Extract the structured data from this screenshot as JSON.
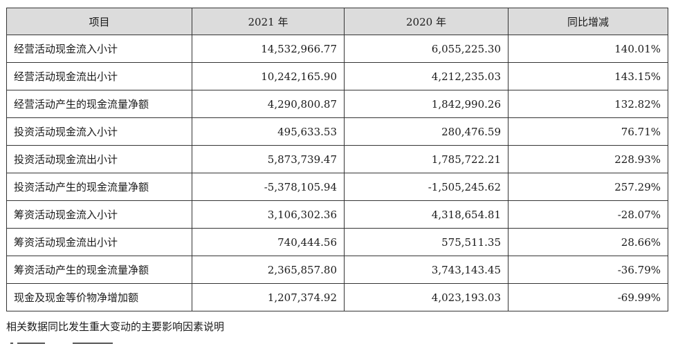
{
  "table": {
    "headers": [
      "项目",
      "2021 年",
      "2020 年",
      "同比增减"
    ],
    "rows": [
      {
        "item": "经营活动现金流入小计",
        "y2021": "14,532,966.77",
        "y2020": "6,055,225.30",
        "change": "140.01%"
      },
      {
        "item": "经营活动现金流出小计",
        "y2021": "10,242,165.90",
        "y2020": "4,212,235.03",
        "change": "143.15%"
      },
      {
        "item": "经营活动产生的现金流量净额",
        "y2021": "4,290,800.87",
        "y2020": "1,842,990.26",
        "change": "132.82%"
      },
      {
        "item": "投资活动现金流入小计",
        "y2021": "495,633.53",
        "y2020": "280,476.59",
        "change": "76.71%"
      },
      {
        "item": "投资活动现金流出小计",
        "y2021": "5,873,739.47",
        "y2020": "1,785,722.21",
        "change": "228.93%"
      },
      {
        "item": "投资活动产生的现金流量净额",
        "y2021": "-5,378,105.94",
        "y2020": "-1,505,245.62",
        "change": "257.29%"
      },
      {
        "item": "筹资活动现金流入小计",
        "y2021": "3,106,302.36",
        "y2020": "4,318,654.81",
        "change": "-28.07%"
      },
      {
        "item": "筹资活动现金流出小计",
        "y2021": "740,444.56",
        "y2020": "575,511.35",
        "change": "28.66%"
      },
      {
        "item": "筹资活动产生的现金流量净额",
        "y2021": "2,365,857.80",
        "y2020": "3,743,143.45",
        "change": "-36.79%"
      },
      {
        "item": "现金及现金等价物净增加额",
        "y2021": "1,207,374.92",
        "y2020": "4,023,193.03",
        "change": "-69.99%"
      }
    ]
  },
  "note": "相关数据同比发生重大变动的主要影响因素说明"
}
